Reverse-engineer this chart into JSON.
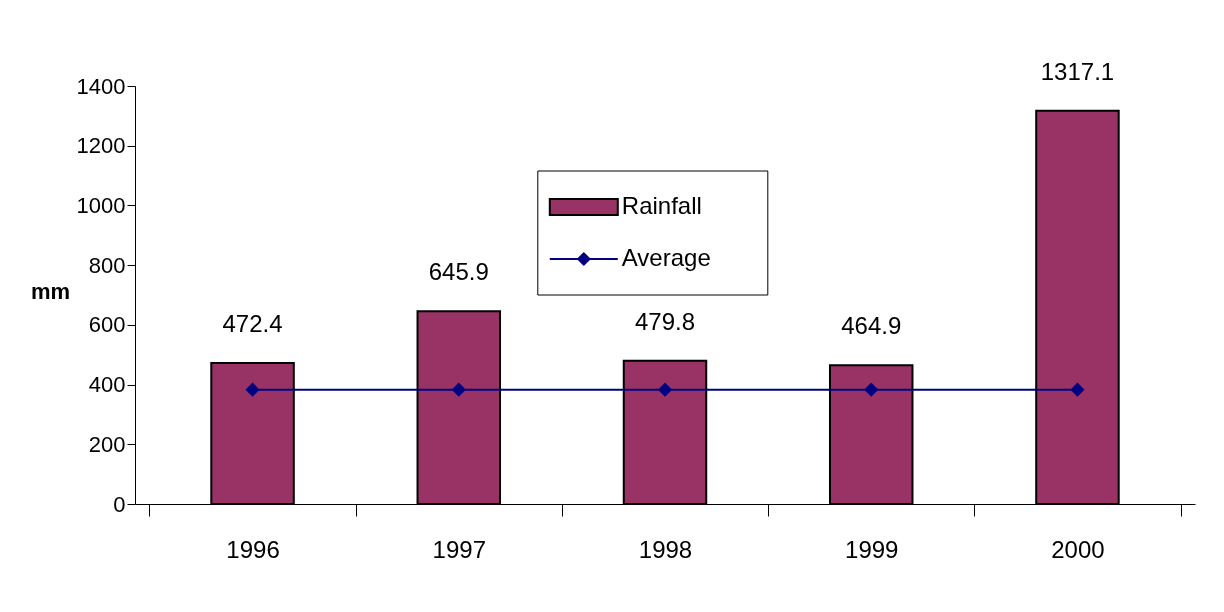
{
  "chart_data": {
    "type": "bar",
    "ylabel": "mm",
    "categories": [
      "1996",
      "1997",
      "1998",
      "1999",
      "2000"
    ],
    "series": [
      {
        "name": "Rainfall",
        "color": "#993366",
        "values": [
          472.4,
          645.9,
          479.8,
          464.9,
          1317.1
        ],
        "value_labels": [
          "472.4",
          "645.9",
          "479.8",
          "464.9",
          "1317.1"
        ]
      },
      {
        "name": "Average",
        "type": "line",
        "color": "#000080",
        "marker": "diamond",
        "values": [
          383,
          383,
          383,
          383,
          383
        ]
      }
    ],
    "ylim": [
      0,
      1400
    ],
    "yticks": [
      0,
      200,
      400,
      600,
      800,
      1000,
      1200,
      1400
    ],
    "grid": false,
    "legend": "top"
  }
}
